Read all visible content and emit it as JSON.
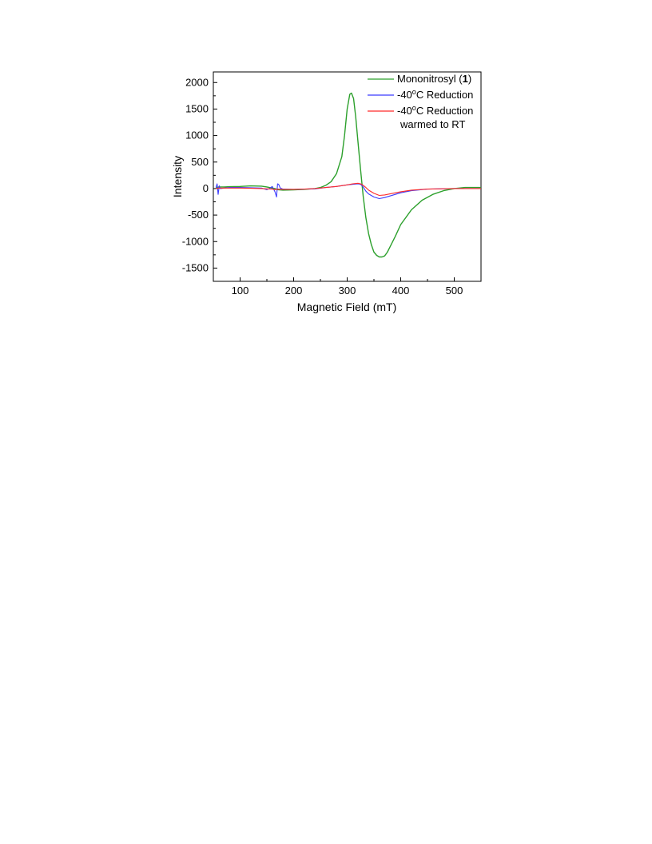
{
  "chart_data": {
    "type": "line",
    "title": "",
    "xlabel": "Magnetic Field (mT)",
    "ylabel": "Intensity",
    "xlim": [
      50,
      550
    ],
    "ylim": [
      -1750,
      2200
    ],
    "x_ticks": [
      100,
      200,
      300,
      400,
      500
    ],
    "y_ticks": [
      -1500,
      -1000,
      -500,
      0,
      500,
      1000,
      1500,
      2000
    ],
    "grid": false,
    "legend_position": "top-right",
    "series": [
      {
        "name": "Mononitrosyl (1)",
        "legend": {
          "text": "Mononitrosyl (",
          "bold": "1",
          "after": ")",
          "line2": ""
        },
        "color": "#2ca02c",
        "x": [
          55,
          60,
          70,
          80,
          100,
          120,
          140,
          150,
          160,
          165,
          170,
          180,
          200,
          220,
          240,
          250,
          260,
          270,
          280,
          290,
          295,
          300,
          305,
          308,
          312,
          316,
          320,
          325,
          330,
          335,
          340,
          345,
          350,
          355,
          360,
          365,
          370,
          375,
          380,
          390,
          400,
          420,
          440,
          460,
          480,
          500,
          520,
          550
        ],
        "y": [
          10,
          30,
          30,
          35,
          40,
          50,
          45,
          30,
          10,
          0,
          -20,
          -30,
          -25,
          -15,
          0,
          20,
          60,
          130,
          280,
          600,
          1000,
          1500,
          1780,
          1800,
          1700,
          1350,
          900,
          350,
          -150,
          -550,
          -850,
          -1050,
          -1200,
          -1260,
          -1290,
          -1290,
          -1270,
          -1200,
          -1100,
          -900,
          -680,
          -400,
          -220,
          -110,
          -40,
          0,
          20,
          20
        ]
      },
      {
        "name": "-40°C Reduction",
        "legend": {
          "text": "-40",
          "sup": "o",
          "after": "C Reduction",
          "line2": ""
        },
        "color": "#3b3bff",
        "x": [
          55,
          57,
          59,
          61,
          63,
          70,
          80,
          100,
          120,
          140,
          150,
          155,
          160,
          165,
          168,
          170,
          172,
          175,
          180,
          200,
          220,
          240,
          260,
          280,
          300,
          320,
          325,
          330,
          335,
          340,
          350,
          360,
          370,
          380,
          400,
          420,
          450,
          500,
          550
        ],
        "y": [
          20,
          90,
          -110,
          50,
          0,
          10,
          20,
          20,
          15,
          10,
          -20,
          0,
          40,
          -60,
          -160,
          90,
          80,
          10,
          -10,
          -15,
          -10,
          -5,
          20,
          40,
          70,
          90,
          80,
          30,
          -50,
          -100,
          -160,
          -190,
          -170,
          -140,
          -80,
          -40,
          -10,
          0,
          0
        ]
      },
      {
        "name": "-40°C Reduction warmed to RT",
        "legend": {
          "text": "-40",
          "sup": "o",
          "after": "C Reduction",
          "line2": "warmed to RT"
        },
        "color": "#ff2a2a",
        "x": [
          55,
          60,
          70,
          80,
          100,
          120,
          140,
          160,
          165,
          170,
          180,
          200,
          220,
          240,
          260,
          280,
          300,
          310,
          320,
          325,
          330,
          335,
          340,
          350,
          360,
          370,
          380,
          400,
          420,
          450,
          500,
          550
        ],
        "y": [
          0,
          10,
          10,
          10,
          10,
          5,
          0,
          -10,
          -20,
          -10,
          -15,
          -15,
          -10,
          0,
          20,
          40,
          70,
          90,
          100,
          90,
          60,
          20,
          -30,
          -90,
          -130,
          -120,
          -100,
          -60,
          -30,
          -10,
          0,
          0
        ]
      }
    ]
  }
}
